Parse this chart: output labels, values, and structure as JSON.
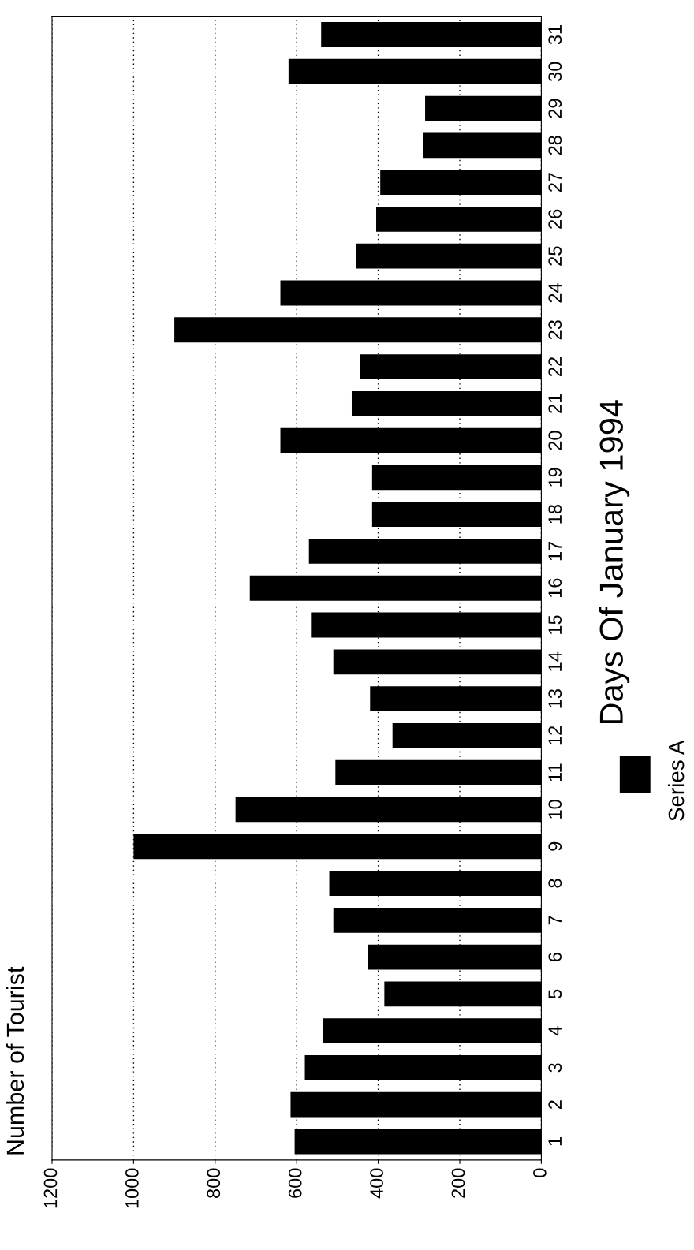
{
  "chart_data": {
    "type": "bar",
    "orientation": "horizontal",
    "title": "Number of Tourist",
    "ylabel": "Days Of January 1994",
    "categories": [
      "31",
      "30",
      "29",
      "28",
      "27",
      "26",
      "25",
      "24",
      "23",
      "22",
      "21",
      "20",
      "19",
      "18",
      "17",
      "16",
      "15",
      "14",
      "13",
      "12",
      "11",
      "10",
      "9",
      "8",
      "7",
      "6",
      "5",
      "4",
      "3",
      "2",
      "1"
    ],
    "series": [
      {
        "name": "Series A",
        "color": "#000000",
        "values": [
          540,
          620,
          285,
          290,
          395,
          405,
          455,
          640,
          900,
          445,
          465,
          640,
          415,
          415,
          570,
          715,
          565,
          510,
          420,
          365,
          505,
          750,
          1000,
          520,
          510,
          425,
          385,
          535,
          580,
          615,
          605
        ]
      }
    ],
    "xlim": [
      1200,
      0
    ],
    "xticks": [
      0,
      200,
      400,
      600,
      800,
      1000,
      1200
    ],
    "grid": "x",
    "legend": "right"
  }
}
